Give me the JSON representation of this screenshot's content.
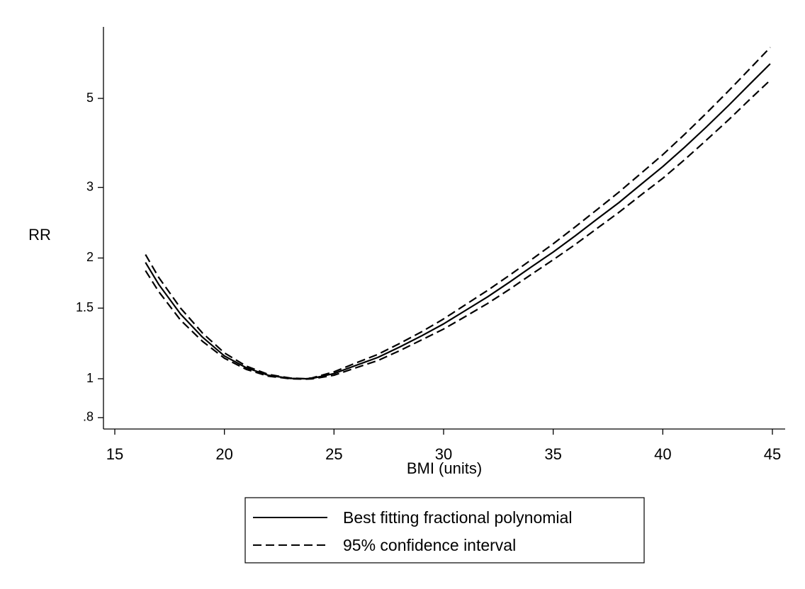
{
  "chart_data": {
    "type": "line",
    "title": "",
    "xlabel": "BMI (units)",
    "ylabel": "RR",
    "xlim": [
      15,
      45
    ],
    "ylim": [
      0.75,
      7.5
    ],
    "y_scale": "log",
    "grid": false,
    "legend_placement": "bottom",
    "x_ticks": [
      {
        "value": 15,
        "label": "15"
      },
      {
        "value": 20,
        "label": "20"
      },
      {
        "value": 25,
        "label": "25"
      },
      {
        "value": 30,
        "label": "30"
      },
      {
        "value": 35,
        "label": "35"
      },
      {
        "value": 40,
        "label": "40"
      },
      {
        "value": 45,
        "label": "45"
      }
    ],
    "y_ticks": [
      {
        "value": 0.8,
        "label": ".8"
      },
      {
        "value": 1,
        "label": "1"
      },
      {
        "value": 1.5,
        "label": "1.5"
      },
      {
        "value": 2,
        "label": "2"
      },
      {
        "value": 3,
        "label": "3"
      },
      {
        "value": 5,
        "label": "5"
      }
    ],
    "series": [
      {
        "name": "Best fitting fractional polynomial",
        "style": "solid",
        "color": "#000000",
        "x": [
          16.4,
          17,
          18,
          19,
          20,
          21,
          22,
          23,
          23.7,
          24,
          25,
          26,
          27,
          28,
          29,
          30,
          31,
          32,
          33,
          34,
          35,
          36,
          37,
          38,
          39,
          40,
          41,
          42,
          43,
          44,
          44.9
        ],
        "y": [
          1.95,
          1.72,
          1.45,
          1.27,
          1.14,
          1.065,
          1.02,
          1.002,
          1.0,
          1.002,
          1.03,
          1.08,
          1.13,
          1.2,
          1.28,
          1.37,
          1.48,
          1.6,
          1.74,
          1.9,
          2.07,
          2.27,
          2.5,
          2.75,
          3.05,
          3.38,
          3.78,
          4.25,
          4.8,
          5.45,
          6.1
        ]
      },
      {
        "name": "95% confidence interval",
        "style": "dashed",
        "color": "#000000",
        "x": [
          16.4,
          17,
          18,
          19,
          20,
          21,
          22,
          23,
          23.7,
          24,
          25,
          26,
          27,
          28,
          29,
          30,
          31,
          32,
          33,
          34,
          35,
          36,
          37,
          38,
          39,
          40,
          41,
          42,
          43,
          44,
          44.9
        ],
        "y": [
          2.04,
          1.79,
          1.5,
          1.3,
          1.16,
          1.075,
          1.025,
          1.004,
          1.0,
          1.005,
          1.04,
          1.095,
          1.15,
          1.225,
          1.31,
          1.41,
          1.53,
          1.66,
          1.81,
          1.98,
          2.17,
          2.39,
          2.64,
          2.92,
          3.25,
          3.62,
          4.07,
          4.6,
          5.22,
          5.95,
          6.7
        ]
      },
      {
        "name": "",
        "style": "dashed",
        "color": "#000000",
        "x": [
          16.4,
          17,
          18,
          19,
          20,
          21,
          22,
          23,
          23.7,
          24,
          25,
          26,
          27,
          28,
          29,
          30,
          31,
          32,
          33,
          34,
          35,
          36,
          37,
          38,
          39,
          40,
          41,
          42,
          43,
          44,
          44.9
        ],
        "y": [
          1.86,
          1.65,
          1.4,
          1.24,
          1.125,
          1.055,
          1.015,
          1.0,
          0.998,
          0.999,
          1.02,
          1.065,
          1.11,
          1.175,
          1.25,
          1.33,
          1.43,
          1.54,
          1.67,
          1.82,
          1.98,
          2.16,
          2.37,
          2.6,
          2.87,
          3.16,
          3.52,
          3.94,
          4.42,
          4.99,
          5.55
        ]
      }
    ]
  },
  "legend": {
    "items": [
      {
        "label": "Best fitting fractional polynomial",
        "style": "solid"
      },
      {
        "label": "95% confidence interval",
        "style": "dashed"
      }
    ]
  }
}
